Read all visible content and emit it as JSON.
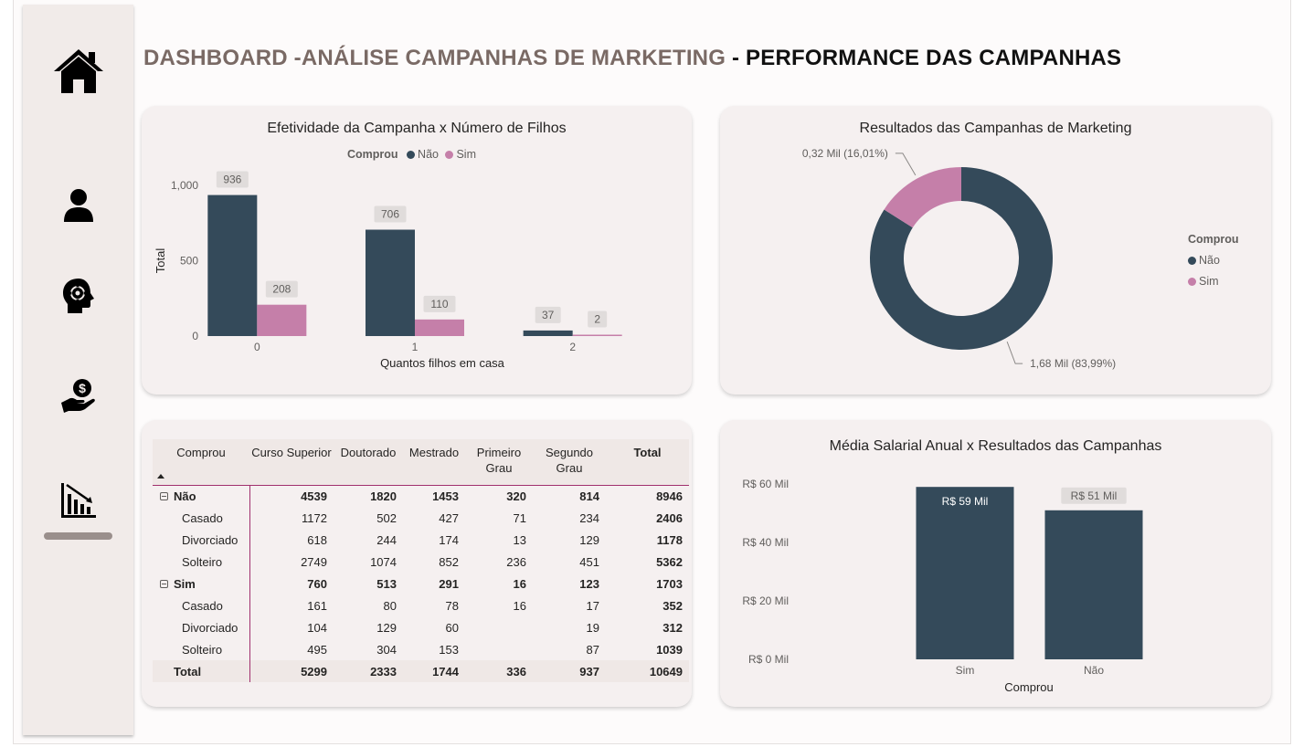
{
  "page": {
    "title_part1": "DASHBOARD -ANÁLISE CAMPANHAS DE MARKETING",
    "title_sep": " - ",
    "title_part2": "PERFORMANCE DAS CAMPANHAS"
  },
  "sidebar": {
    "items": [
      {
        "name": "home",
        "icon": "home-icon"
      },
      {
        "name": "profile",
        "icon": "user-icon"
      },
      {
        "name": "behavior",
        "icon": "head-gear-icon"
      },
      {
        "name": "finance",
        "icon": "money-hand-icon"
      },
      {
        "name": "performance",
        "icon": "chart-down-icon",
        "active": true
      }
    ]
  },
  "colors": {
    "nao": "#344a5a",
    "sim": "#c57fa9",
    "accent_line": "#a0306e",
    "title_muted": "#7a6a65"
  },
  "legend": {
    "title": "Comprou",
    "nao": "Não",
    "sim": "Sim"
  },
  "chart_data": [
    {
      "type": "bar",
      "title": "Efetividade da Campanha x Número de Filhos",
      "xlabel": "Quantos filhos em casa",
      "ylabel": "Total",
      "categories": [
        "0",
        "1",
        "2"
      ],
      "yticks": [
        "0",
        "500",
        "1,000"
      ],
      "ylim": [
        0,
        1000
      ],
      "legend_title": "Comprou",
      "legend_position": "top-center",
      "series": [
        {
          "name": "Não",
          "values": [
            936,
            706,
            37
          ],
          "labels": [
            "936",
            "706",
            "37"
          ]
        },
        {
          "name": "Sim",
          "values": [
            208,
            110,
            2
          ],
          "labels": [
            "208",
            "110",
            "2"
          ]
        }
      ]
    },
    {
      "type": "pie",
      "title": "Resultados das Campanhas de Marketing",
      "donut": true,
      "legend_title": "Comprou",
      "legend_position": "right",
      "slices": [
        {
          "name": "Não",
          "value": 1.68,
          "percent": 83.99,
          "label": "1,68 Mil (83,99%)"
        },
        {
          "name": "Sim",
          "value": 0.32,
          "percent": 16.01,
          "label": "0,32 Mil (16,01%)"
        }
      ]
    },
    {
      "type": "bar",
      "title": "Média Salarial Anual x Resultados das Campanhas",
      "xlabel": "Comprou",
      "ylabel": "",
      "categories": [
        "Sim",
        "Não"
      ],
      "values": [
        59,
        51
      ],
      "labels": [
        "R$ 59 Mil",
        "R$ 51 Mil"
      ],
      "yticks": [
        "R$ 0 Mil",
        "R$ 20 Mil",
        "R$ 40 Mil",
        "R$ 60 Mil"
      ],
      "ylim": [
        0,
        60
      ]
    },
    {
      "type": "table",
      "row_header": "Comprou",
      "columns": [
        "Curso Superior",
        "Doutorado",
        "Mestrado",
        "Primeiro Grau",
        "Segundo Grau",
        "Total"
      ],
      "rows": [
        {
          "label": "Não",
          "level": 0,
          "values": [
            "4539",
            "1820",
            "1453",
            "320",
            "814",
            "8946"
          ]
        },
        {
          "label": "Casado",
          "level": 1,
          "values": [
            "1172",
            "502",
            "427",
            "71",
            "234",
            "2406"
          ]
        },
        {
          "label": "Divorciado",
          "level": 1,
          "values": [
            "618",
            "244",
            "174",
            "13",
            "129",
            "1178"
          ]
        },
        {
          "label": "Solteiro",
          "level": 1,
          "values": [
            "2749",
            "1074",
            "852",
            "236",
            "451",
            "5362"
          ]
        },
        {
          "label": "Sim",
          "level": 0,
          "values": [
            "760",
            "513",
            "291",
            "16",
            "123",
            "1703"
          ]
        },
        {
          "label": "Casado",
          "level": 1,
          "values": [
            "161",
            "80",
            "78",
            "16",
            "17",
            "352"
          ]
        },
        {
          "label": "Divorciado",
          "level": 1,
          "values": [
            "104",
            "129",
            "60",
            "",
            "19",
            "312"
          ]
        },
        {
          "label": "Solteiro",
          "level": 1,
          "values": [
            "495",
            "304",
            "153",
            "",
            "87",
            "1039"
          ]
        },
        {
          "label": "Total",
          "level": "total",
          "values": [
            "5299",
            "2333",
            "1744",
            "336",
            "937",
            "10649"
          ]
        }
      ]
    }
  ]
}
